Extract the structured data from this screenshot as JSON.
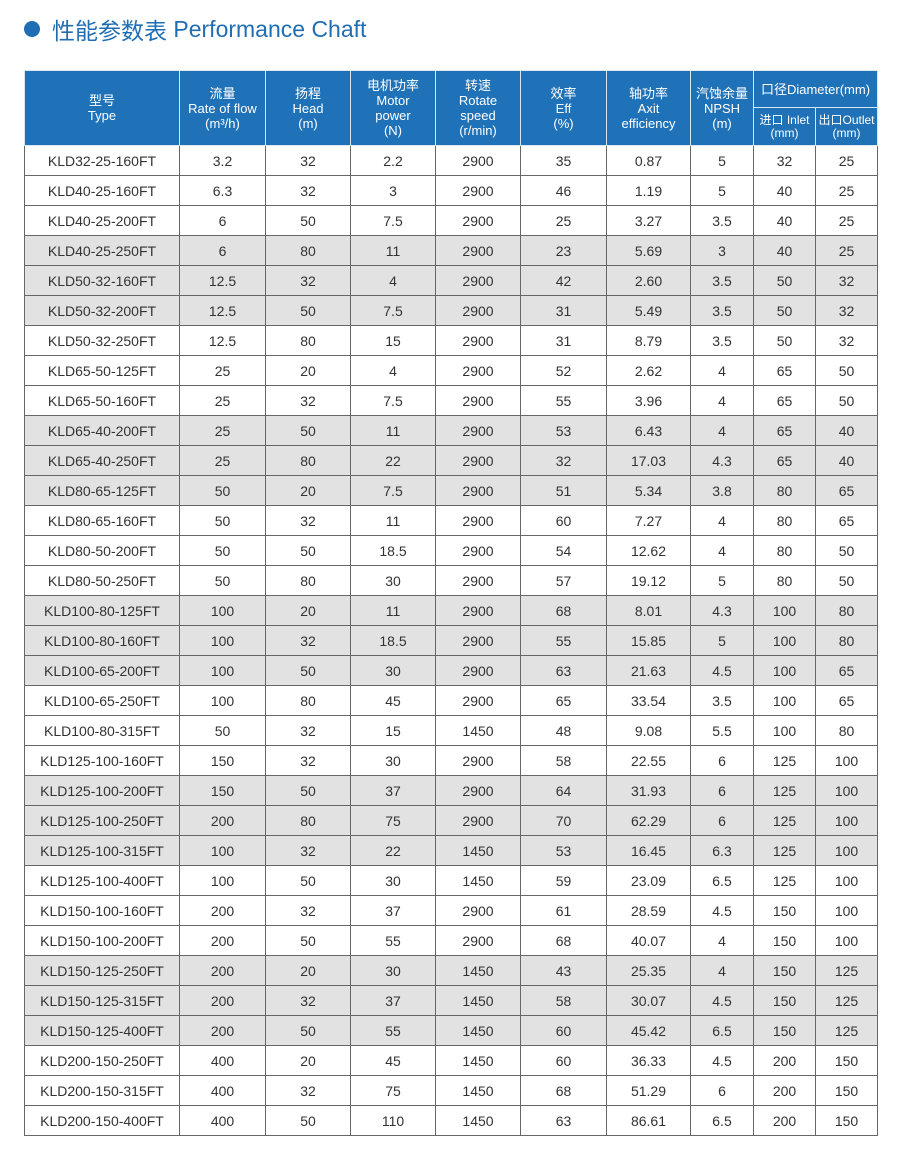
{
  "title": {
    "cn": "性能参数表",
    "en": "Performance Chaft"
  },
  "colors": {
    "accent": "#1f72b8",
    "row_alt": "#e2e2e2"
  },
  "headers": {
    "type": [
      "型号",
      "Type"
    ],
    "flow": [
      "流量",
      "Rate of flow",
      "(m³/h)"
    ],
    "head": [
      "扬程",
      "Head",
      "(m)"
    ],
    "motor": [
      "电机功率",
      "Motor",
      "power",
      "(N)"
    ],
    "speed": [
      "转速",
      "Rotate",
      "speed",
      "(r/min)"
    ],
    "eff": [
      "效率",
      "Eff",
      "(%)"
    ],
    "axit": [
      "轴功率",
      "Axit",
      "efficiency"
    ],
    "npsh": [
      "汽蚀余量",
      "NPSH",
      "(m)"
    ],
    "diameter": "口径Diameter(mm)",
    "inlet": [
      "进口 Inlet",
      "(mm)"
    ],
    "outlet": [
      "出口Outlet",
      "(mm)"
    ]
  },
  "rows": [
    [
      "KLD32-25-160FT",
      "3.2",
      "32",
      "2.2",
      "2900",
      "35",
      "0.87",
      "5",
      "32",
      "25"
    ],
    [
      "KLD40-25-160FT",
      "6.3",
      "32",
      "3",
      "2900",
      "46",
      "1.19",
      "5",
      "40",
      "25"
    ],
    [
      "KLD40-25-200FT",
      "6",
      "50",
      "7.5",
      "2900",
      "25",
      "3.27",
      "3.5",
      "40",
      "25"
    ],
    [
      "KLD40-25-250FT",
      "6",
      "80",
      "11",
      "2900",
      "23",
      "5.69",
      "3",
      "40",
      "25"
    ],
    [
      "KLD50-32-160FT",
      "12.5",
      "32",
      "4",
      "2900",
      "42",
      "2.60",
      "3.5",
      "50",
      "32"
    ],
    [
      "KLD50-32-200FT",
      "12.5",
      "50",
      "7.5",
      "2900",
      "31",
      "5.49",
      "3.5",
      "50",
      "32"
    ],
    [
      "KLD50-32-250FT",
      "12.5",
      "80",
      "15",
      "2900",
      "31",
      "8.79",
      "3.5",
      "50",
      "32"
    ],
    [
      "KLD65-50-125FT",
      "25",
      "20",
      "4",
      "2900",
      "52",
      "2.62",
      "4",
      "65",
      "50"
    ],
    [
      "KLD65-50-160FT",
      "25",
      "32",
      "7.5",
      "2900",
      "55",
      "3.96",
      "4",
      "65",
      "50"
    ],
    [
      "KLD65-40-200FT",
      "25",
      "50",
      "11",
      "2900",
      "53",
      "6.43",
      "4",
      "65",
      "40"
    ],
    [
      "KLD65-40-250FT",
      "25",
      "80",
      "22",
      "2900",
      "32",
      "17.03",
      "4.3",
      "65",
      "40"
    ],
    [
      "KLD80-65-125FT",
      "50",
      "20",
      "7.5",
      "2900",
      "51",
      "5.34",
      "3.8",
      "80",
      "65"
    ],
    [
      "KLD80-65-160FT",
      "50",
      "32",
      "11",
      "2900",
      "60",
      "7.27",
      "4",
      "80",
      "65"
    ],
    [
      "KLD80-50-200FT",
      "50",
      "50",
      "18.5",
      "2900",
      "54",
      "12.62",
      "4",
      "80",
      "50"
    ],
    [
      "KLD80-50-250FT",
      "50",
      "80",
      "30",
      "2900",
      "57",
      "19.12",
      "5",
      "80",
      "50"
    ],
    [
      "KLD100-80-125FT",
      "100",
      "20",
      "11",
      "2900",
      "68",
      "8.01",
      "4.3",
      "100",
      "80"
    ],
    [
      "KLD100-80-160FT",
      "100",
      "32",
      "18.5",
      "2900",
      "55",
      "15.85",
      "5",
      "100",
      "80"
    ],
    [
      "KLD100-65-200FT",
      "100",
      "50",
      "30",
      "2900",
      "63",
      "21.63",
      "4.5",
      "100",
      "65"
    ],
    [
      "KLD100-65-250FT",
      "100",
      "80",
      "45",
      "2900",
      "65",
      "33.54",
      "3.5",
      "100",
      "65"
    ],
    [
      "KLD100-80-315FT",
      "50",
      "32",
      "15",
      "1450",
      "48",
      "9.08",
      "5.5",
      "100",
      "80"
    ],
    [
      "KLD125-100-160FT",
      "150",
      "32",
      "30",
      "2900",
      "58",
      "22.55",
      "6",
      "125",
      "100"
    ],
    [
      "KLD125-100-200FT",
      "150",
      "50",
      "37",
      "2900",
      "64",
      "31.93",
      "6",
      "125",
      "100"
    ],
    [
      "KLD125-100-250FT",
      "200",
      "80",
      "75",
      "2900",
      "70",
      "62.29",
      "6",
      "125",
      "100"
    ],
    [
      "KLD125-100-315FT",
      "100",
      "32",
      "22",
      "1450",
      "53",
      "16.45",
      "6.3",
      "125",
      "100"
    ],
    [
      "KLD125-100-400FT",
      "100",
      "50",
      "30",
      "1450",
      "59",
      "23.09",
      "6.5",
      "125",
      "100"
    ],
    [
      "KLD150-100-160FT",
      "200",
      "32",
      "37",
      "2900",
      "61",
      "28.59",
      "4.5",
      "150",
      "100"
    ],
    [
      "KLD150-100-200FT",
      "200",
      "50",
      "55",
      "2900",
      "68",
      "40.07",
      "4",
      "150",
      "100"
    ],
    [
      "KLD150-125-250FT",
      "200",
      "20",
      "30",
      "1450",
      "43",
      "25.35",
      "4",
      "150",
      "125"
    ],
    [
      "KLD150-125-315FT",
      "200",
      "32",
      "37",
      "1450",
      "58",
      "30.07",
      "4.5",
      "150",
      "125"
    ],
    [
      "KLD150-125-400FT",
      "200",
      "50",
      "55",
      "1450",
      "60",
      "45.42",
      "6.5",
      "150",
      "125"
    ],
    [
      "KLD200-150-250FT",
      "400",
      "20",
      "45",
      "1450",
      "60",
      "36.33",
      "4.5",
      "200",
      "150"
    ],
    [
      "KLD200-150-315FT",
      "400",
      "32",
      "75",
      "1450",
      "68",
      "51.29",
      "6",
      "200",
      "150"
    ],
    [
      "KLD200-150-400FT",
      "400",
      "50",
      "110",
      "1450",
      "63",
      "86.61",
      "6.5",
      "200",
      "150"
    ]
  ]
}
